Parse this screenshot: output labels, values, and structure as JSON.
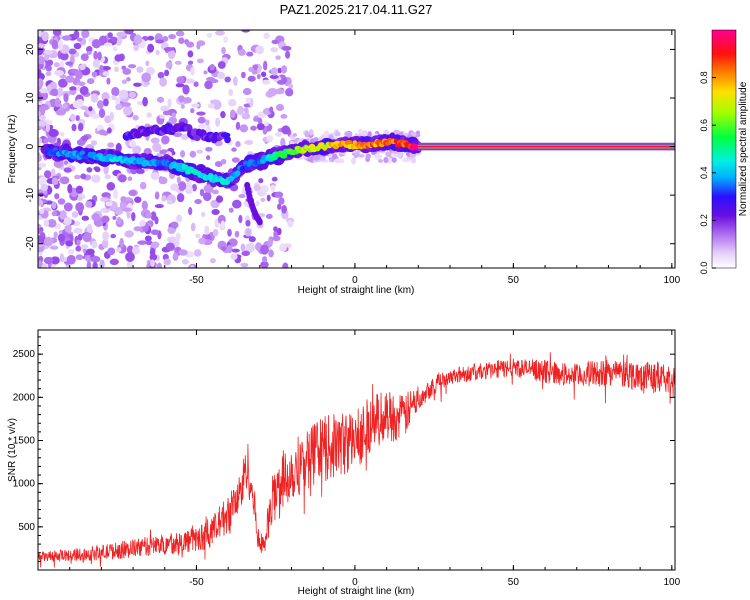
{
  "title": "PAZ1.2025.217.04.11.G27",
  "chart_data": [
    {
      "type": "heatmap",
      "xlabel": "Height of straight line (km)",
      "ylabel": "Frequency (Hz)",
      "xlim": [
        -100,
        101
      ],
      "ylim": [
        -25,
        24
      ],
      "xticks": [
        -50,
        0,
        50,
        100
      ],
      "yticks": [
        -20,
        -10,
        0,
        10,
        20
      ],
      "grid": false,
      "colorbar": {
        "label": "Normalized spectral amplitude",
        "range": [
          0,
          1
        ],
        "ticks": [
          0.0,
          0.2,
          0.4,
          0.6,
          0.8
        ],
        "colormap": [
          "#ffffff",
          "#d8b6f5",
          "#8a2be2",
          "#3010ff",
          "#00e5ff",
          "#00ff40",
          "#c8ff00",
          "#ffa500",
          "#ff2000",
          "#ff0090"
        ]
      },
      "ridge": {
        "x": [
          -97,
          -90,
          -85,
          -80,
          -75,
          -70,
          -65,
          -60,
          -55,
          -50,
          -45,
          -40,
          -35,
          -30,
          -25,
          -20,
          -15,
          -10,
          -5,
          0,
          5,
          10,
          15,
          20,
          40,
          60,
          80,
          100
        ],
        "y": [
          -1.0,
          -1.5,
          -1.8,
          -2.2,
          -2.6,
          -3.0,
          -3.2,
          -3.5,
          -4.3,
          -5.4,
          -6.4,
          -7.2,
          -4.0,
          -3.0,
          -2.0,
          -1.0,
          -0.5,
          0.0,
          0.5,
          0.3,
          0.5,
          1.0,
          0.5,
          0.0,
          0.0,
          0.0,
          0.0,
          0.0
        ],
        "amplitude": [
          0.35,
          0.4,
          0.35,
          0.4,
          0.45,
          0.4,
          0.4,
          0.35,
          0.45,
          0.5,
          0.45,
          0.45,
          0.35,
          0.35,
          0.55,
          0.6,
          0.7,
          0.75,
          0.8,
          0.8,
          0.85,
          0.85,
          0.9,
          1.0,
          1.0,
          1.0,
          1.0,
          1.0
        ]
      },
      "secondary_ridge": {
        "x": [
          -72,
          -65,
          -58,
          -55,
          -50,
          -45,
          -40
        ],
        "y": [
          2.5,
          3.0,
          3.5,
          4.2,
          2.5,
          2.0,
          2.0
        ]
      },
      "tail": {
        "x": [
          -34,
          -33,
          -32,
          -31,
          -30
        ],
        "y": [
          -8,
          -11,
          -13,
          -14.5,
          -15.5
        ]
      }
    },
    {
      "type": "line",
      "xlabel": "Height of straight line (km)",
      "ylabel": "SNR (10 * v/v)",
      "xlim": [
        -100,
        101
      ],
      "ylim": [
        0,
        2780
      ],
      "xticks": [
        -50,
        0,
        50,
        100
      ],
      "yticks": [
        500,
        1000,
        1500,
        2000,
        2500
      ],
      "grid": false,
      "color": "#ee2222",
      "series": [
        {
          "x": [
            -100,
            -90,
            -80,
            -70,
            -60,
            -50,
            -45,
            -40,
            -36,
            -34,
            -32,
            -30,
            -28,
            -26,
            -24,
            -20,
            -15,
            -10,
            -5,
            0,
            5,
            10,
            15,
            20,
            25,
            30,
            40,
            50,
            60,
            70,
            80,
            90,
            100
          ],
          "y": [
            150,
            170,
            200,
            250,
            300,
            350,
            450,
            650,
            900,
            1250,
            800,
            250,
            400,
            800,
            1000,
            1150,
            1300,
            1400,
            1450,
            1500,
            1700,
            1800,
            1750,
            2000,
            2150,
            2250,
            2300,
            2350,
            2300,
            2250,
            2300,
            2250,
            2200
          ],
          "noise": [
            60,
            70,
            90,
            110,
            120,
            150,
            180,
            220,
            260,
            300,
            250,
            120,
            200,
            300,
            330,
            360,
            360,
            380,
            380,
            360,
            330,
            300,
            280,
            150,
            110,
            100,
            100,
            110,
            130,
            140,
            160,
            180,
            200
          ]
        }
      ]
    }
  ]
}
